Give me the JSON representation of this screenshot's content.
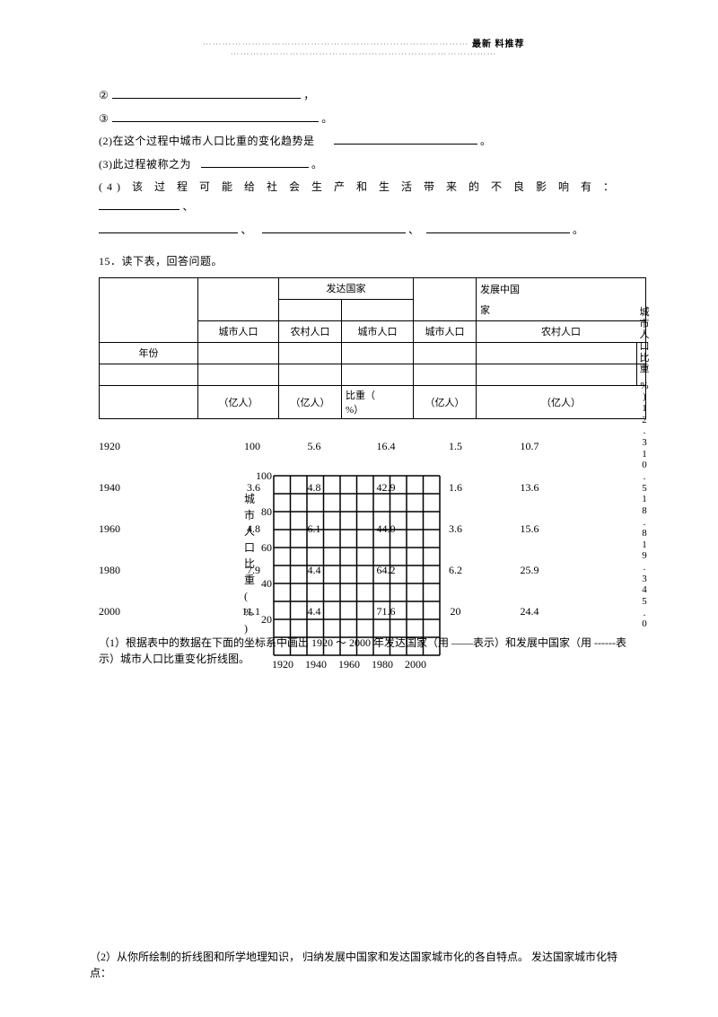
{
  "header": {
    "dots_left": "⋯⋯⋯⋯⋯⋯⋯⋯⋯⋯⋯⋯⋯⋯⋯⋯⋯⋯⋯⋯⋯⋯⋯⋯⋯⋯⋯",
    "title": "最新 料推荐",
    "dots_right": "⋯⋯⋯⋯⋯⋯⋯⋯⋯⋯⋯⋯⋯⋯⋯⋯⋯⋯⋯⋯⋯⋯⋯⋯⋯⋯⋯"
  },
  "q_prefix": {
    "item2_num": "②",
    "item2_sep": "，",
    "item3_num": "③",
    "item3_end": "。",
    "q2_label": "(2)在这个过程中城市人口比重的变化趋势是",
    "q2_end": "。",
    "q3_label": "(3)此过程被称之为",
    "q3_end": "。",
    "q4_label": "(4) 该 过 程 可 能 给 社 会 生 产 和 生 活 带 来 的 不 良 影 响 有 ：",
    "q4_sep": "、",
    "q4_end": "。"
  },
  "q15": {
    "intro": "15．读下表，回答问题。",
    "table": {
      "h_developed": "发达国家",
      "h_developing_1": "发展中国",
      "h_developing_2": "家",
      "row_year": "年份",
      "col_urban": "城市人口",
      "col_rural": "农村人口",
      "unit_yi": "（亿人）",
      "unit_pct_1": "比重（",
      "unit_pct_2": "%）",
      "side_text": "城市人口比重（%）"
    },
    "rows": [
      {
        "year": "1920",
        "v1": "1",
        "v2": "5.6",
        "v3": "16.4",
        "v4": "1.5",
        "v5": "10.7"
      },
      {
        "year": "1940",
        "v1": "3.6",
        "v2": "4.8",
        "v3": "42.9",
        "v4": "1.6",
        "v5": "13.6"
      },
      {
        "year": "1960",
        "v1": "4.8",
        "v2": "6.1",
        "v3": "44.0",
        "v4": "3.6",
        "v5": "15.6"
      },
      {
        "year": "1980",
        "v1": "7.9",
        "v2": "4.4",
        "v3": "64.2",
        "v4": "6.2",
        "v5": "25.9"
      },
      {
        "year": "2000",
        "v1": "11.1",
        "v2": "4.4",
        "v3": "71.6",
        "v4": "20",
        "v5": "24.4"
      }
    ],
    "right_vals": [
      "1",
      "2",
      ".",
      "3",
      "1",
      "0",
      ".",
      "5",
      "1",
      "8",
      ".",
      "8",
      "1",
      "9",
      ".",
      "3",
      "4",
      "5",
      ".",
      "0"
    ],
    "chart": {
      "y_label": "城市人口比重(%)",
      "x_ticks": [
        "1920",
        "1940",
        "1960",
        "1980",
        "2000"
      ],
      "y_ticks": [
        "20",
        "40",
        "60",
        "80",
        "100"
      ],
      "ytick_100": "100"
    },
    "q1_text": "（1）根据表中的数据在下面的坐标系中画出 1920 ～ 2000 年发达国家（用 ——表示）和发展中国家（用 ------表示）城市人口比重变化折线图。",
    "q2_text": "（2）从你所绘制的折线图和所学地理知识， 归纳发展中国家和发达国家城市化的各自特点。 发达国家城市化特点："
  }
}
